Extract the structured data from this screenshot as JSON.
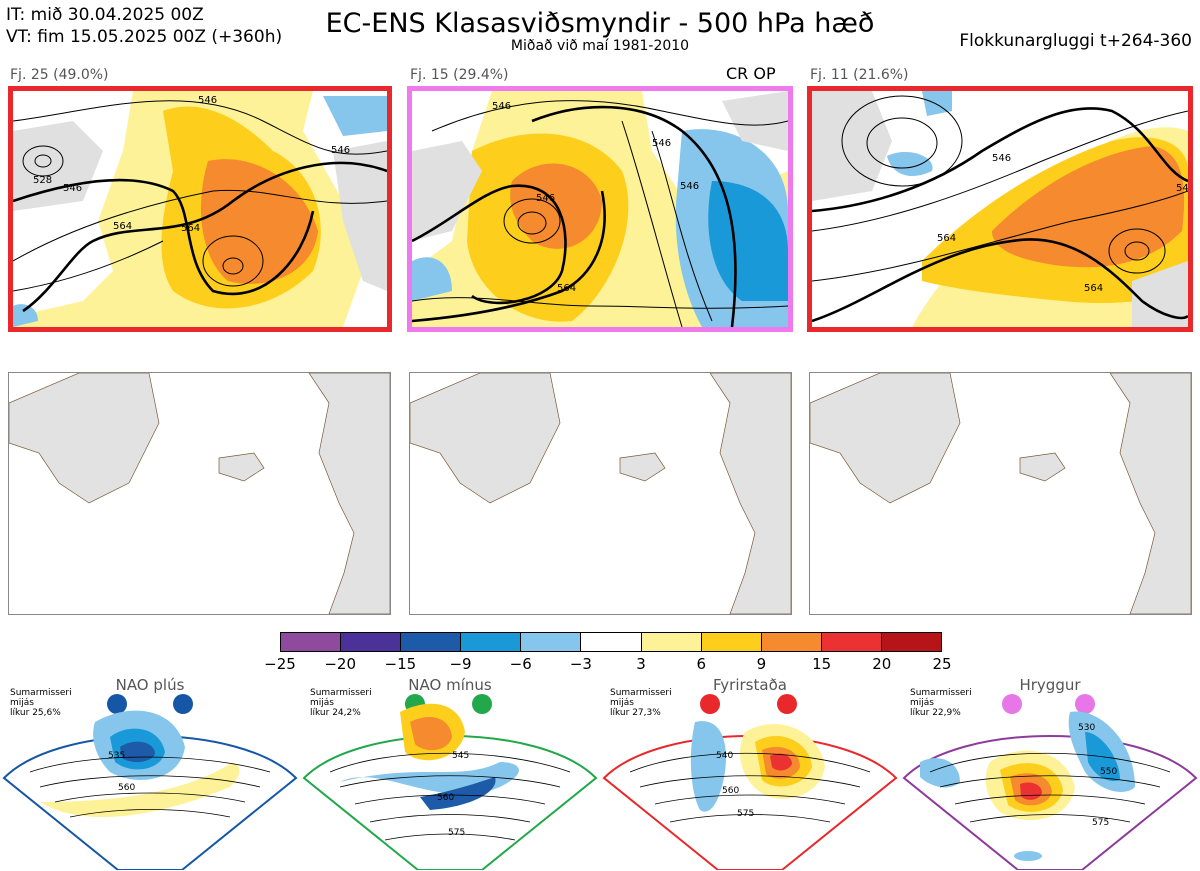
{
  "header": {
    "it_line": "IT: mið 30.04.2025 00Z",
    "vt_line": "VT: fim 15.05.2025 00Z  (+360h)",
    "title": "EC-ENS Klasasviðsmyndir - 500 hPa hæð",
    "subtitle": "Miðað við maí 1981-2010",
    "window": "Flokkunargluggi t+264-360"
  },
  "clusters": [
    {
      "label": "Fj. 25 (49.0%)",
      "members": 25,
      "percent": 49.0,
      "frame_color": "#e8282b",
      "tags": "",
      "contour_labels": [
        "546",
        "564",
        "564",
        "528",
        "546",
        "546"
      ]
    },
    {
      "label": "Fj. 15 (29.4%)",
      "members": 15,
      "percent": 29.4,
      "frame_color": "#ee7aee",
      "tags": "CR OP",
      "contour_labels": [
        "546",
        "564",
        "546",
        "546",
        "546"
      ]
    },
    {
      "label": "Fj. 11 (21.6%)",
      "members": 11,
      "percent": 21.6,
      "frame_color": "#e8282b",
      "tags": "",
      "contour_labels": [
        "546",
        "564",
        "564",
        "54"
      ]
    }
  ],
  "colorbar": {
    "ticks": [
      "−25",
      "−20",
      "−15",
      "−9",
      "−6",
      "−3",
      "3",
      "6",
      "9",
      "15",
      "20",
      "25"
    ],
    "colors": [
      "#8e4a9c",
      "#4a3298",
      "#1d5aa8",
      "#1a99d9",
      "#86c6ec",
      "#ffffff",
      "#fdf297",
      "#fdcf1c",
      "#f68a2e",
      "#eb3131",
      "#b71419"
    ]
  },
  "regimes": [
    {
      "name": "NAO plús",
      "note": [
        "Sumarmisseri",
        "mijás",
        "líkur 25,6%"
      ],
      "color": "#1557a6",
      "contour_labels": [
        "535",
        "560"
      ]
    },
    {
      "name": "NAO mínus",
      "note": [
        "Sumarmisseri",
        "mijás",
        "líkur 24,2%"
      ],
      "color": "#21a84a",
      "contour_labels": [
        "545",
        "560",
        "575"
      ]
    },
    {
      "name": "Fyrirstaða",
      "note": [
        "Sumarmisseri",
        "mijás",
        "líkur 27,3%"
      ],
      "color": "#e8282b",
      "contour_labels": [
        "540",
        "560",
        "575"
      ]
    },
    {
      "name": "Hryggur",
      "note": [
        "Sumarmisseri",
        "mijás",
        "líkur 22,9%"
      ],
      "color": "#e777e7",
      "contour_labels": [
        "530",
        "550",
        "575"
      ]
    }
  ],
  "chart_data": {
    "type": "heatmap",
    "title": "EC-ENS Klasasviðsmyndir - 500 hPa hæð",
    "colorbar_ticks": [
      -25,
      -20,
      -15,
      -9,
      -6,
      -3,
      3,
      6,
      9,
      15,
      20,
      25
    ],
    "clusters": [
      {
        "name": "Fj. 25",
        "members": 25,
        "percent": 49.0
      },
      {
        "name": "Fj. 15",
        "members": 15,
        "percent": 29.4
      },
      {
        "name": "Fj. 11",
        "members": 11,
        "percent": 21.6
      }
    ],
    "regimes": [
      {
        "name": "NAO plús",
        "likelihood_percent": 25.6
      },
      {
        "name": "NAO mínus",
        "likelihood_percent": 24.2
      },
      {
        "name": "Fyrirstaða",
        "likelihood_percent": 27.3
      },
      {
        "name": "Hryggur",
        "likelihood_percent": 22.9
      }
    ]
  }
}
